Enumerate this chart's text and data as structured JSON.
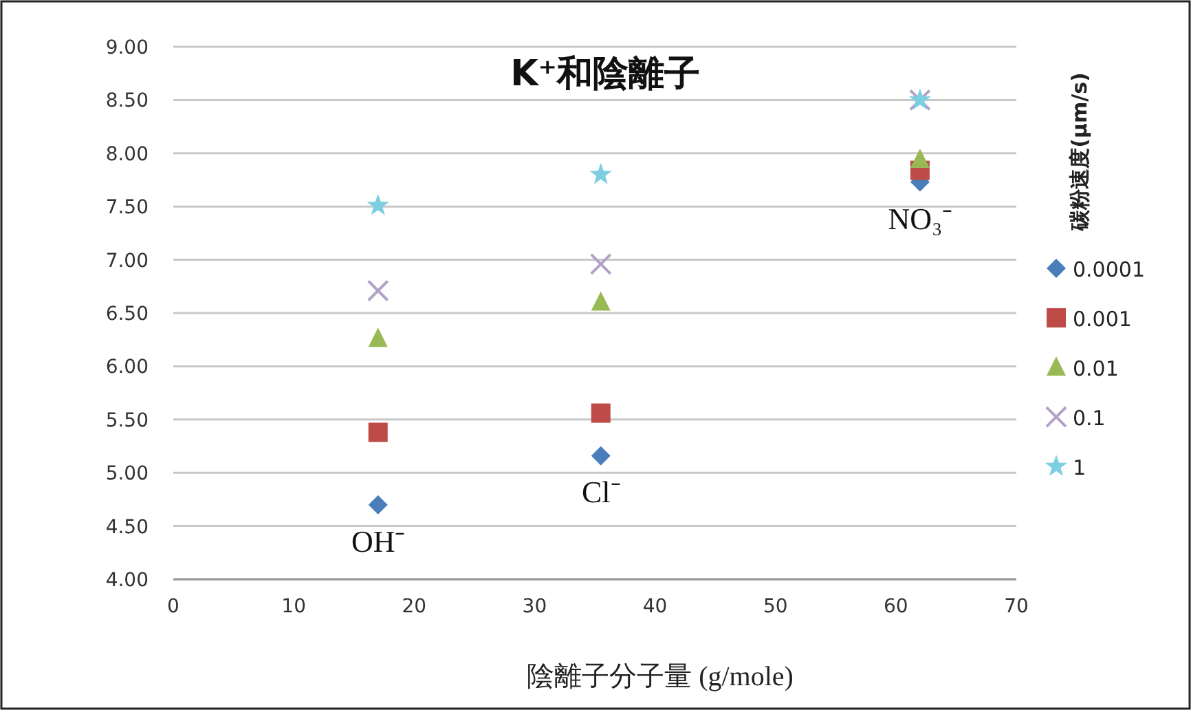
{
  "chart_data": {
    "type": "scatter",
    "title": "K⁺和陰離子",
    "xlabel": "陰離子分子量 (g/mole)",
    "legend_title": "碳粉速度(μm/s)",
    "xlim": [
      0,
      70
    ],
    "xticks": [
      0,
      10,
      20,
      30,
      40,
      50,
      60,
      70
    ],
    "ylim": [
      4,
      9
    ],
    "yticks": [
      {
        "value": 4,
        "label": "4.00"
      },
      {
        "value": 4.5,
        "label": "4.50"
      },
      {
        "value": 5,
        "label": "5.00"
      },
      {
        "value": 5.5,
        "label": "5.50"
      },
      {
        "value": 6,
        "label": "6.00"
      },
      {
        "value": 6.5,
        "label": "6.50"
      },
      {
        "value": 7,
        "label": "7.00"
      },
      {
        "value": 7.5,
        "label": "7.50"
      },
      {
        "value": 8,
        "label": "8.00"
      },
      {
        "value": 8.5,
        "label": "8.50"
      },
      {
        "value": 9,
        "label": "9.00"
      }
    ],
    "grid": "y",
    "legend": "right",
    "x": [
      17,
      35.5,
      62
    ],
    "series": [
      {
        "name": "0.0001",
        "color": "#4a7ebb",
        "marker": "diamond",
        "values": [
          4.7,
          5.16,
          7.73
        ]
      },
      {
        "name": "0.001",
        "color": "#be4b48",
        "marker": "square",
        "values": [
          5.38,
          5.56,
          7.84
        ]
      },
      {
        "name": "0.01",
        "color": "#98b954",
        "marker": "triangle",
        "values": [
          6.26,
          6.6,
          7.94
        ]
      },
      {
        "name": "0.1",
        "color": "#b3a2c7",
        "marker": "cross",
        "values": [
          6.71,
          6.96,
          8.5
        ]
      },
      {
        "name": "1",
        "color": "#7ccfe0",
        "marker": "star",
        "values": [
          7.51,
          7.8,
          8.5
        ]
      }
    ],
    "annotations": [
      "OH⁻",
      "Cl⁻",
      "NO₃⁻"
    ]
  }
}
